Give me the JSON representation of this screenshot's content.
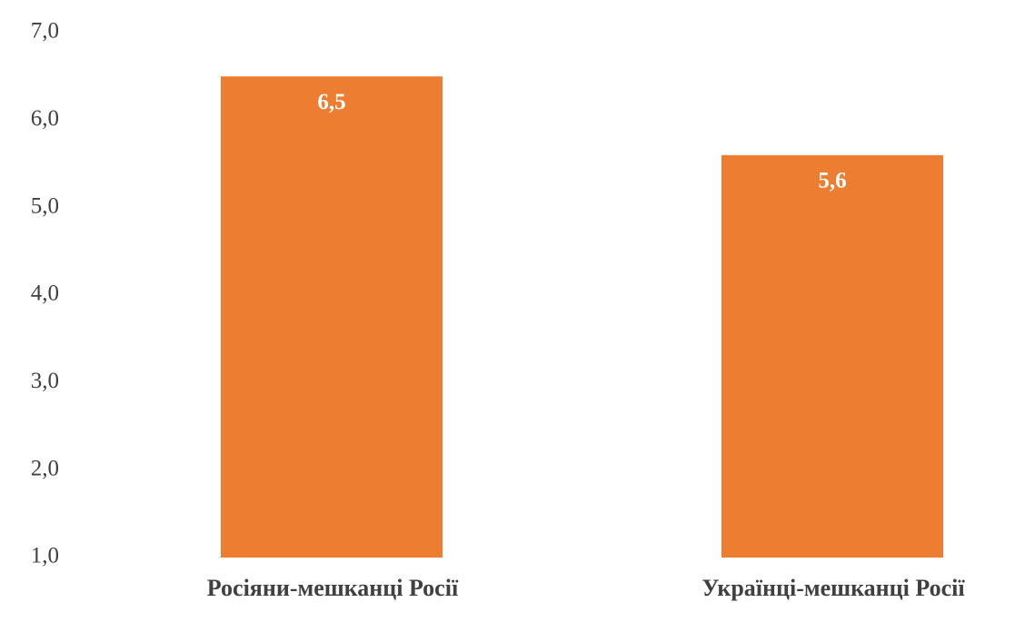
{
  "chart_data": {
    "type": "bar",
    "categories": [
      "Росіяни-мешканці Росії",
      "Українці-мешканці Росії"
    ],
    "values": [
      6.5,
      5.6
    ],
    "value_labels": [
      "6,5",
      "5,6"
    ],
    "color": "#ed7d31",
    "ylim": [
      1,
      7
    ],
    "yticks": [
      {
        "value": 1,
        "label": "1,0"
      },
      {
        "value": 2,
        "label": "2,0"
      },
      {
        "value": 3,
        "label": "3,0"
      },
      {
        "value": 4,
        "label": "4,0"
      },
      {
        "value": 5,
        "label": "5,0"
      },
      {
        "value": 6,
        "label": "6,0"
      },
      {
        "value": 7,
        "label": "7,0"
      }
    ],
    "grid": false
  }
}
